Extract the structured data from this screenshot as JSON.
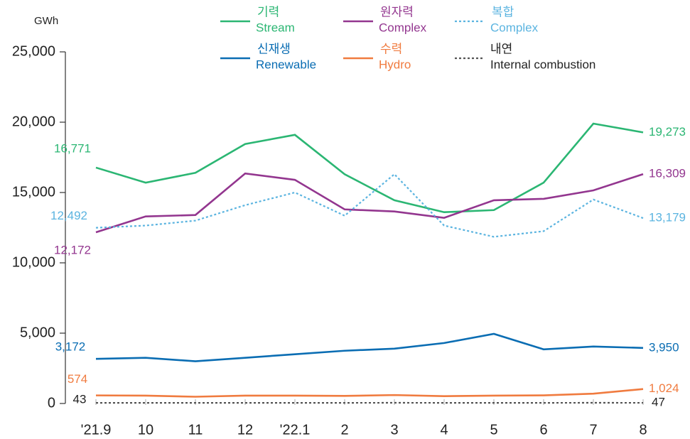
{
  "chart_data": {
    "type": "line",
    "y_label": "GWh",
    "categories": [
      "'21.9",
      "10",
      "11",
      "12",
      "'22.1",
      "2",
      "3",
      "4",
      "5",
      "6",
      "7",
      "8"
    ],
    "ylim": [
      0,
      25000
    ],
    "yticks": [
      0,
      {
        "value": 5000,
        "label": "5,000"
      },
      {
        "value": 10000,
        "label": "10,000"
      },
      {
        "value": 15000,
        "label": "15,000"
      },
      {
        "value": 20000,
        "label": "20,000"
      },
      {
        "value": 25000,
        "label": "25,000"
      }
    ],
    "series": [
      {
        "name": "기력",
        "name_en": "Stream",
        "color": "#2bb673",
        "dash": "solid",
        "values": [
          16771,
          15700,
          16400,
          18450,
          19100,
          16300,
          14450,
          13600,
          13750,
          15700,
          19900,
          19273
        ],
        "value_labels": [
          "16,771",
          null,
          null,
          null,
          null,
          null,
          null,
          null,
          null,
          null,
          null,
          "19,273"
        ]
      },
      {
        "name": "원자력",
        "name_en": "Complex",
        "color": "#93368f",
        "dash": "solid",
        "values": [
          12172,
          13300,
          13400,
          16350,
          15900,
          13800,
          13650,
          13200,
          14450,
          14550,
          15150,
          16309
        ],
        "value_labels": [
          "12,172",
          null,
          null,
          null,
          null,
          null,
          null,
          null,
          null,
          null,
          null,
          "16,309"
        ]
      },
      {
        "name": "복합",
        "name_en": "Complex",
        "color": "#5bb4e0",
        "dash": "dotted",
        "values": [
          12492,
          12650,
          13000,
          14100,
          15000,
          13350,
          16300,
          12650,
          11850,
          12250,
          14500,
          13179
        ],
        "value_labels": [
          "12,492",
          null,
          null,
          null,
          null,
          null,
          null,
          null,
          null,
          null,
          null,
          "13,179"
        ]
      },
      {
        "name": "신재생",
        "name_en": "Renewable",
        "color": "#0a6db3",
        "dash": "solid",
        "values": [
          3172,
          3250,
          3000,
          3250,
          3500,
          3750,
          3900,
          4300,
          4950,
          3850,
          4050,
          3950
        ],
        "value_labels": [
          "3,172",
          null,
          null,
          null,
          null,
          null,
          null,
          null,
          null,
          null,
          null,
          "3,950"
        ]
      },
      {
        "name": "수력",
        "name_en": "Hydro",
        "color": "#f07b3f",
        "dash": "solid",
        "values": [
          574,
          560,
          480,
          560,
          560,
          540,
          600,
          520,
          560,
          580,
          700,
          1024
        ],
        "value_labels": [
          "574",
          null,
          null,
          null,
          null,
          null,
          null,
          null,
          null,
          null,
          null,
          "1,024"
        ]
      },
      {
        "name": "내연",
        "name_en": "Internal combustion",
        "color": "#555555",
        "dash": "dotted",
        "values": [
          43,
          45,
          45,
          45,
          45,
          45,
          50,
          45,
          45,
          45,
          50,
          47
        ],
        "value_labels": [
          "43",
          null,
          null,
          null,
          null,
          null,
          null,
          null,
          null,
          null,
          null,
          "47"
        ]
      }
    ]
  }
}
